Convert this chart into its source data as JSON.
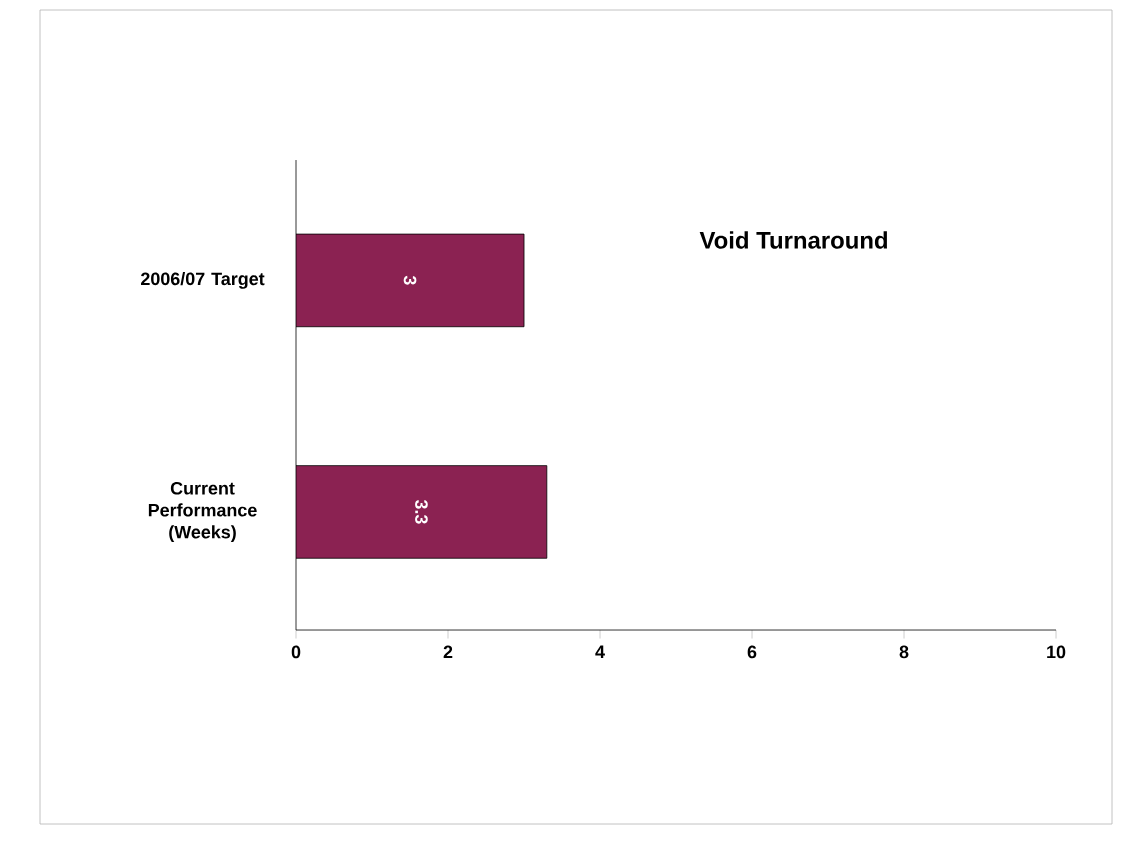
{
  "chart_data": {
    "type": "bar",
    "orientation": "horizontal",
    "title": "Void Turnaround",
    "categories": [
      "2006/07 Target",
      "Current Performance (Weeks)"
    ],
    "values": [
      3,
      3.3
    ],
    "color": "#8b2252",
    "data_labels": true,
    "xlim": [
      0,
      10
    ],
    "xticks": [
      0,
      2,
      4,
      6,
      8,
      10
    ]
  }
}
